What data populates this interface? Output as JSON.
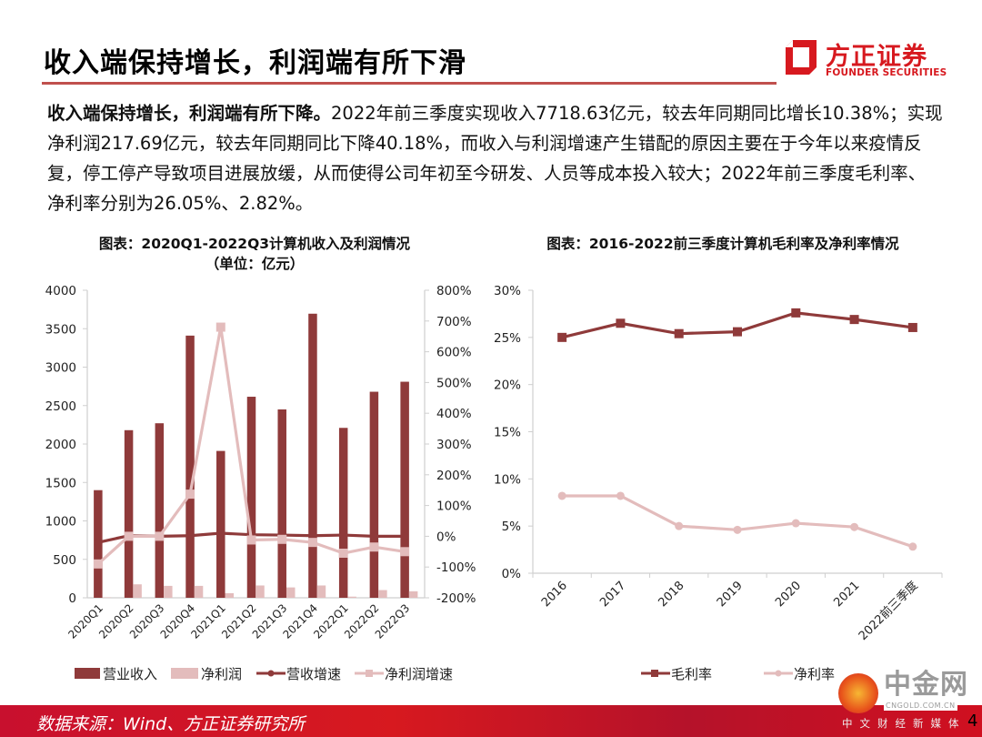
{
  "header": {
    "title": "收入端保持增长，利润端有所下滑",
    "logo_cn": "方正证券",
    "logo_en": "FOUNDER SECURITIES"
  },
  "summary": {
    "lead": "收入端保持增长，利润端有所下降。",
    "body": "2022年前三季度实现收入7718.63亿元，较去年同期同比增长10.38%；实现净利润217.69亿元，较去年同期同比下降40.18%，而收入与利润增速产生错配的原因主要在于今年以来疫情反复，停工停产导致项目进展放缓，从而使得公司年初至今研发、人员等成本投入较大；2022年前三季度毛利率、净利率分别为26.05%、2.82%。"
  },
  "colors": {
    "dark_red": "#8f3a3a",
    "light_pink": "#e3bcbc",
    "brand_red": "#d7191f",
    "title_rule": "#c0504d"
  },
  "chart_data": [
    {
      "type": "bar",
      "title": "图表：2020Q1-2022Q3计算机收入及利润情况",
      "subtitle": "（单位：亿元）",
      "categories": [
        "2020Q1",
        "2020Q2",
        "2020Q3",
        "2020Q4",
        "2021Q1",
        "2021Q2",
        "2021Q3",
        "2021Q4",
        "2022Q1",
        "2022Q2",
        "2022Q3"
      ],
      "y_left": {
        "min": 0,
        "max": 4000,
        "ticks": [
          "0",
          "500",
          "1000",
          "1500",
          "2000",
          "2500",
          "3000",
          "3500",
          "4000"
        ],
        "tick_values": [
          0,
          500,
          1000,
          1500,
          2000,
          2500,
          3000,
          3500,
          4000
        ]
      },
      "y_right": {
        "min": -200,
        "max": 800,
        "ticks": [
          "-200%",
          "-100%",
          "0%",
          "100%",
          "200%",
          "300%",
          "400%",
          "500%",
          "600%",
          "700%",
          "800%"
        ],
        "tick_values": [
          -200,
          -100,
          0,
          100,
          200,
          300,
          400,
          500,
          600,
          700,
          800
        ]
      },
      "series": [
        {
          "name": "营业收入",
          "kind": "bar",
          "axis": "left",
          "values": [
            1400,
            2180,
            2270,
            3410,
            1910,
            2615,
            2450,
            3695,
            2210,
            2680,
            2810
          ]
        },
        {
          "name": "净利润",
          "kind": "bar",
          "axis": "left",
          "values": [
            5,
            175,
            155,
            155,
            60,
            160,
            135,
            160,
            15,
            100,
            85
          ]
        },
        {
          "name": "营收增速",
          "kind": "line",
          "marker": "circle",
          "axis": "right",
          "values": [
            -20,
            2,
            0,
            2,
            10,
            5,
            4,
            2,
            4,
            0,
            0
          ]
        },
        {
          "name": "净利润增速",
          "kind": "line",
          "marker": "square",
          "axis": "right",
          "values": [
            -90,
            0,
            0,
            137,
            680,
            -12,
            -10,
            -20,
            -55,
            -35,
            -50
          ]
        }
      ],
      "legend": "bottom",
      "grid": false
    },
    {
      "type": "line",
      "title": "图表：2016-2022前三季度计算机毛利率及净利率情况",
      "categories": [
        "2016",
        "2017",
        "2018",
        "2019",
        "2020",
        "2021",
        "2022前三季度"
      ],
      "y": {
        "min": 0,
        "max": 30,
        "ticks": [
          "0%",
          "5%",
          "10%",
          "15%",
          "20%",
          "25%",
          "30%"
        ],
        "tick_values": [
          0,
          5,
          10,
          15,
          20,
          25,
          30
        ]
      },
      "series": [
        {
          "name": "毛利率",
          "marker": "square",
          "values": [
            25.0,
            26.5,
            25.4,
            25.6,
            27.6,
            26.9,
            26.05
          ]
        },
        {
          "name": "净利率",
          "marker": "circle",
          "values": [
            8.2,
            8.2,
            5.0,
            4.6,
            5.3,
            4.9,
            2.82
          ]
        }
      ],
      "legend": "bottom",
      "grid": false
    }
  ],
  "footer": {
    "source": "数据来源：Wind、方正证券研究所",
    "page": "4"
  },
  "watermark": {
    "cn": "中金网",
    "en": "CNGOLD.COM.CN",
    "sub": "中文财经新媒体"
  }
}
